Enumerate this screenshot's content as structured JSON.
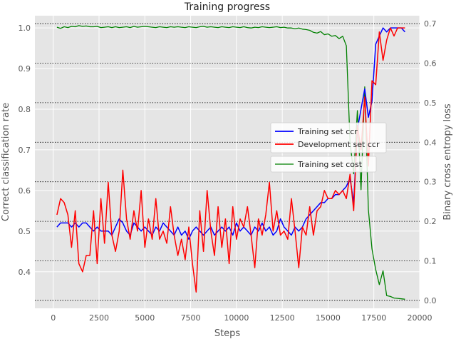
{
  "chart_data": {
    "type": "line",
    "title": "Training progress",
    "xlabel": "Steps",
    "ylabel_left": "Correct classification rate",
    "ylabel_right": "Binary cross entropy loss",
    "xlim": [
      -1000,
      20000
    ],
    "ylim_left": [
      0.31,
      1.03
    ],
    "ylim_right": [
      -0.02,
      0.72
    ],
    "xticks": [
      0,
      2500,
      5000,
      7500,
      10000,
      12500,
      15000,
      17500,
      20000
    ],
    "xtick_labels": [
      "0",
      "2500",
      "5000",
      "7500",
      "10000",
      "12500",
      "15000",
      "17500",
      "20000"
    ],
    "yticks_left": [
      0.4,
      0.5,
      0.6,
      0.7,
      0.8,
      0.9,
      1.0
    ],
    "ytick_labels_left": [
      "0.4",
      "0.5",
      "0.6",
      "0.7",
      "0.8",
      "0.9",
      "1.0"
    ],
    "yticks_right": [
      0.0,
      0.1,
      0.2,
      0.3,
      0.4,
      0.5,
      0.6,
      0.7
    ],
    "ytick_labels_right": [
      "0.0",
      "0.1",
      "0.2",
      "0.3",
      "0.4",
      "0.5",
      "0.6",
      "0.7"
    ],
    "grid": true,
    "legend": [
      {
        "label": "Training set ccr",
        "color": "#0000ff"
      },
      {
        "label": "Development set ccr",
        "color": "#ff0000"
      }
    ],
    "legend2": [
      {
        "label": "Training set cost",
        "color": "#008000"
      }
    ],
    "series": [
      {
        "name": "Training set ccr",
        "axis": "left",
        "color": "#0000ff",
        "x": [
          200,
          400,
          600,
          800,
          1000,
          1200,
          1400,
          1600,
          1800,
          2000,
          2200,
          2400,
          2600,
          2800,
          3000,
          3200,
          3400,
          3600,
          3800,
          4000,
          4200,
          4400,
          4600,
          4800,
          5000,
          5200,
          5400,
          5600,
          5800,
          6000,
          6200,
          6400,
          6600,
          6800,
          7000,
          7200,
          7400,
          7600,
          7800,
          8000,
          8200,
          8400,
          8600,
          8800,
          9000,
          9200,
          9400,
          9600,
          9800,
          10000,
          10200,
          10400,
          10600,
          10800,
          11000,
          11200,
          11400,
          11600,
          11800,
          12000,
          12200,
          12400,
          12600,
          12800,
          13000,
          13200,
          13400,
          13600,
          13800,
          14000,
          14200,
          14400,
          14600,
          14800,
          15000,
          15200,
          15400,
          15600,
          15800,
          16000,
          16200,
          16400,
          16600,
          16800,
          17000,
          17200,
          17400,
          17600,
          17800,
          18000,
          18200,
          18400,
          18600,
          18800,
          19000,
          19200
        ],
        "y": [
          0.51,
          0.52,
          0.52,
          0.52,
          0.51,
          0.52,
          0.51,
          0.52,
          0.52,
          0.51,
          0.5,
          0.51,
          0.5,
          0.5,
          0.5,
          0.49,
          0.51,
          0.53,
          0.52,
          0.5,
          0.49,
          0.52,
          0.51,
          0.5,
          0.51,
          0.5,
          0.49,
          0.51,
          0.5,
          0.52,
          0.51,
          0.5,
          0.49,
          0.51,
          0.49,
          0.5,
          0.48,
          0.5,
          0.51,
          0.5,
          0.49,
          0.5,
          0.51,
          0.49,
          0.5,
          0.51,
          0.5,
          0.51,
          0.49,
          0.52,
          0.5,
          0.51,
          0.5,
          0.49,
          0.51,
          0.5,
          0.52,
          0.5,
          0.51,
          0.49,
          0.5,
          0.53,
          0.51,
          0.5,
          0.49,
          0.51,
          0.5,
          0.51,
          0.53,
          0.54,
          0.55,
          0.56,
          0.57,
          0.57,
          0.58,
          0.58,
          0.59,
          0.59,
          0.6,
          0.61,
          0.63,
          0.57,
          0.75,
          0.8,
          0.85,
          0.78,
          0.82,
          0.96,
          0.98,
          1.0,
          0.99,
          1.0,
          1.0,
          1.0,
          1.0,
          0.99
        ]
      },
      {
        "name": "Development set ccr",
        "axis": "left",
        "color": "#ff0000",
        "x": [
          200,
          400,
          600,
          800,
          1000,
          1200,
          1400,
          1600,
          1800,
          2000,
          2200,
          2400,
          2600,
          2800,
          3000,
          3200,
          3400,
          3600,
          3800,
          4000,
          4200,
          4400,
          4600,
          4800,
          5000,
          5200,
          5400,
          5600,
          5800,
          6000,
          6200,
          6400,
          6600,
          6800,
          7000,
          7200,
          7400,
          7600,
          7800,
          8000,
          8200,
          8400,
          8600,
          8800,
          9000,
          9200,
          9400,
          9600,
          9800,
          10000,
          10200,
          10400,
          10600,
          10800,
          11000,
          11200,
          11400,
          11600,
          11800,
          12000,
          12200,
          12400,
          12600,
          12800,
          13000,
          13200,
          13400,
          13600,
          13800,
          14000,
          14200,
          14400,
          14600,
          14800,
          15000,
          15200,
          15400,
          15600,
          15800,
          16000,
          16200,
          16400,
          16600,
          16800,
          17000,
          17200,
          17400,
          17600,
          17800,
          18000,
          18200,
          18400,
          18600,
          18800,
          19000,
          19200
        ],
        "y": [
          0.54,
          0.58,
          0.57,
          0.54,
          0.46,
          0.55,
          0.42,
          0.4,
          0.44,
          0.44,
          0.55,
          0.42,
          0.58,
          0.47,
          0.62,
          0.49,
          0.45,
          0.5,
          0.65,
          0.53,
          0.48,
          0.55,
          0.5,
          0.6,
          0.46,
          0.53,
          0.48,
          0.58,
          0.48,
          0.5,
          0.47,
          0.56,
          0.49,
          0.44,
          0.48,
          0.43,
          0.51,
          0.42,
          0.35,
          0.55,
          0.45,
          0.6,
          0.5,
          0.44,
          0.56,
          0.46,
          0.53,
          0.42,
          0.56,
          0.48,
          0.53,
          0.51,
          0.56,
          0.49,
          0.41,
          0.53,
          0.49,
          0.54,
          0.62,
          0.5,
          0.55,
          0.49,
          0.5,
          0.48,
          0.58,
          0.5,
          0.41,
          0.51,
          0.49,
          0.56,
          0.49,
          0.55,
          0.56,
          0.6,
          0.58,
          0.58,
          0.6,
          0.59,
          0.6,
          0.58,
          0.64,
          0.55,
          0.76,
          0.7,
          0.83,
          0.66,
          0.87,
          0.86,
          0.99,
          0.92,
          0.97,
          1.0,
          0.98,
          1.0,
          1.0,
          1.0
        ]
      },
      {
        "name": "Training set cost",
        "axis": "right",
        "color": "#008000",
        "x": [
          200,
          400,
          600,
          800,
          1000,
          1200,
          1400,
          1600,
          1800,
          2000,
          2200,
          2400,
          2600,
          2800,
          3000,
          3200,
          3400,
          3600,
          3800,
          4000,
          4200,
          4400,
          4600,
          4800,
          5000,
          5200,
          5400,
          5600,
          5800,
          6000,
          6200,
          6400,
          6600,
          6800,
          7000,
          7200,
          7400,
          7600,
          7800,
          8000,
          8200,
          8400,
          8600,
          8800,
          9000,
          9200,
          9400,
          9600,
          9800,
          10000,
          10200,
          10400,
          10600,
          10800,
          11000,
          11200,
          11400,
          11600,
          11800,
          12000,
          12200,
          12400,
          12600,
          12800,
          13000,
          13200,
          13400,
          13600,
          13800,
          14000,
          14200,
          14400,
          14600,
          14800,
          15000,
          15200,
          15400,
          15600,
          15800,
          16000,
          16200,
          16400,
          16600,
          16800,
          17000,
          17200,
          17400,
          17600,
          17800,
          18000,
          18200,
          18400,
          18600,
          18800,
          19000,
          19200
        ],
        "y": [
          0.691,
          0.688,
          0.692,
          0.69,
          0.693,
          0.692,
          0.695,
          0.693,
          0.694,
          0.692,
          0.692,
          0.693,
          0.69,
          0.691,
          0.692,
          0.69,
          0.692,
          0.69,
          0.691,
          0.692,
          0.69,
          0.693,
          0.691,
          0.692,
          0.693,
          0.692,
          0.691,
          0.69,
          0.692,
          0.691,
          0.69,
          0.692,
          0.691,
          0.692,
          0.691,
          0.69,
          0.692,
          0.691,
          0.69,
          0.692,
          0.693,
          0.691,
          0.692,
          0.691,
          0.69,
          0.692,
          0.691,
          0.69,
          0.692,
          0.691,
          0.69,
          0.692,
          0.69,
          0.689,
          0.691,
          0.69,
          0.692,
          0.691,
          0.69,
          0.691,
          0.692,
          0.69,
          0.691,
          0.689,
          0.689,
          0.687,
          0.689,
          0.686,
          0.685,
          0.683,
          0.678,
          0.676,
          0.68,
          0.672,
          0.674,
          0.668,
          0.67,
          0.662,
          0.668,
          0.644,
          0.4,
          0.32,
          0.48,
          0.28,
          0.54,
          0.23,
          0.13,
          0.078,
          0.04,
          0.075,
          0.012,
          0.01,
          0.006,
          0.005,
          0.004,
          0.003
        ]
      }
    ]
  }
}
